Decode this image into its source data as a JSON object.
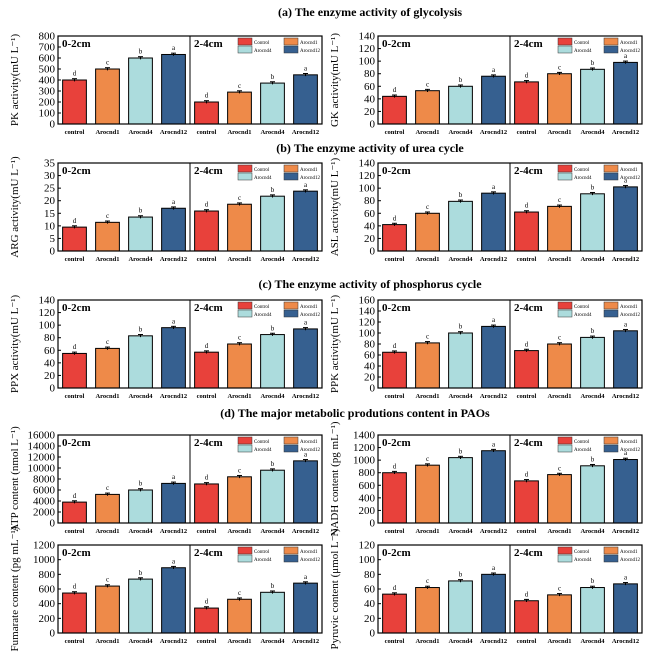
{
  "section_titles": [
    "(a) The enzyme activity of glycolysis",
    "(b) The enzyme activity of urea cycle",
    "(c) The enzyme activity of phosphorus cycle",
    "(d) The major metabolic produtions content in PAOs"
  ],
  "colors": [
    "#e8413b",
    "#ee8a49",
    "#acdcdd",
    "#366090"
  ],
  "chart_data": [
    {
      "type": "bar",
      "title": "PK",
      "ylabel": "PK activity(mU L⁻¹)",
      "ylim": [
        0,
        800
      ],
      "ystep": 100,
      "groups": [
        "0-2cm",
        "2-4cm"
      ],
      "categories": [
        "control",
        "Arocnd1",
        "Arocnd4",
        "Arocnd12"
      ],
      "legend": [
        "Control",
        "Arocnd1",
        "Arocnd4",
        "Arocnd12"
      ],
      "legend_position": "top-right",
      "series": [
        {
          "name": "0-2cm",
          "values": [
            400,
            500,
            600,
            632
          ]
        },
        {
          "name": "2-4cm",
          "values": [
            200,
            290,
            372,
            447
          ]
        }
      ],
      "letters": [
        "d",
        "c",
        "b",
        "a"
      ]
    },
    {
      "type": "bar",
      "title": "GK",
      "ylabel": "GK activity(mU L⁻¹)",
      "ylim": [
        0,
        140
      ],
      "ystep": 20,
      "groups": [
        "0-2cm",
        "2-4cm"
      ],
      "categories": [
        "control",
        "Arocnd1",
        "Arocnd4",
        "Arocnd12"
      ],
      "legend": [
        "Control",
        "Arocnd1",
        "Arocnd4",
        "Arocnd12"
      ],
      "legend_position": "top-right",
      "series": [
        {
          "name": "0-2cm",
          "values": [
            44,
            53,
            60,
            76
          ]
        },
        {
          "name": "2-4cm",
          "values": [
            67,
            80,
            87,
            98
          ]
        }
      ],
      "letters": [
        "d",
        "c",
        "b",
        "a"
      ]
    },
    {
      "type": "bar",
      "title": "ARG",
      "ylabel": "ARG activity(mU L⁻¹)",
      "ylim": [
        0,
        35
      ],
      "ystep": 5,
      "groups": [
        "0-2cm",
        "2-4cm"
      ],
      "categories": [
        "control",
        "Arocnd1",
        "Arocnd4",
        "Arocnd12"
      ],
      "legend": [
        "Control",
        "Arocnd1",
        "Arocnd4",
        "Arocnd12"
      ],
      "legend_position": "top-right",
      "series": [
        {
          "name": "0-2cm",
          "values": [
            9.5,
            11.4,
            13.5,
            17
          ]
        },
        {
          "name": "2-4cm",
          "values": [
            15.9,
            18.6,
            21.8,
            23.8
          ]
        }
      ],
      "letters": [
        "d",
        "c",
        "b",
        "a"
      ]
    },
    {
      "type": "bar",
      "title": "ASL",
      "ylabel": "ASL activity(mU L⁻¹)",
      "ylim": [
        0,
        140
      ],
      "ystep": 20,
      "groups": [
        "0-2cm",
        "2-4cm"
      ],
      "categories": [
        "control",
        "Arocnd1",
        "Arocnd4",
        "Arocnd12"
      ],
      "legend": [
        "Control",
        "Arocnd1",
        "Arocnd4",
        "Arocnd12"
      ],
      "legend_position": "top-right",
      "series": [
        {
          "name": "0-2cm",
          "values": [
            42,
            60,
            79,
            92
          ]
        },
        {
          "name": "2-4cm",
          "values": [
            62,
            71,
            91,
            102
          ]
        }
      ],
      "letters": [
        "d",
        "c",
        "b",
        "a"
      ]
    },
    {
      "type": "bar",
      "title": "PPX",
      "ylabel": "PPX activity(mU L⁻¹)",
      "ylim": [
        0,
        140
      ],
      "ystep": 20,
      "groups": [
        "0-2cm",
        "2-4cm"
      ],
      "categories": [
        "control",
        "Arocnd1",
        "Arocnd4",
        "Arocnd12"
      ],
      "legend": [
        "Control",
        "Arocnd1",
        "Arocnd4",
        "Arocnd12"
      ],
      "legend_position": "top-right",
      "series": [
        {
          "name": "0-2cm",
          "values": [
            55,
            63,
            83,
            96
          ]
        },
        {
          "name": "2-4cm",
          "values": [
            57,
            70,
            85,
            94
          ]
        }
      ],
      "letters": [
        "d",
        "c",
        "b",
        "a"
      ]
    },
    {
      "type": "bar",
      "title": "PPK",
      "ylabel": "PPK activity(mU L⁻¹)",
      "ylim": [
        0,
        160
      ],
      "ystep": 20,
      "groups": [
        "0-2cm",
        "2-4cm"
      ],
      "categories": [
        "control",
        "Arocnd1",
        "Arocnd4",
        "Arocnd12"
      ],
      "legend": [
        "Control",
        "Arocnd1",
        "Arocnd4",
        "Arocnd12"
      ],
      "legend_position": "top-right",
      "series": [
        {
          "name": "0-2cm",
          "values": [
            65,
            82,
            100,
            112
          ]
        },
        {
          "name": "2-4cm",
          "values": [
            68,
            80,
            92,
            104
          ]
        }
      ],
      "letters": [
        "d",
        "c",
        "b",
        "a"
      ]
    },
    {
      "type": "bar",
      "title": "ATP",
      "ylabel": "ATP content (nmol L⁻¹)",
      "ylim": [
        0,
        16000
      ],
      "ystep": 2000,
      "groups": [
        "0-2cm",
        "2-4cm"
      ],
      "categories": [
        "control",
        "Arocnd1",
        "Arocnd4",
        "Arocnd12"
      ],
      "legend": [
        "Control",
        "Arocnd1",
        "Arocnd4",
        "Arocnd12"
      ],
      "legend_position": "top-right",
      "series": [
        {
          "name": "0-2cm",
          "values": [
            3800,
            5200,
            6000,
            7200
          ]
        },
        {
          "name": "2-4cm",
          "values": [
            7100,
            8400,
            9600,
            11300
          ]
        }
      ],
      "letters": [
        "d",
        "c",
        "b",
        "a"
      ]
    },
    {
      "type": "bar",
      "title": "NADH",
      "ylabel": "NADH content (pg mL⁻¹)",
      "ylim": [
        0,
        1400
      ],
      "ystep": 200,
      "groups": [
        "0-2cm",
        "2-4cm"
      ],
      "categories": [
        "control",
        "Arocnd1",
        "Arocnd4",
        "Arocnd12"
      ],
      "legend": [
        "Control",
        "Arocnd1",
        "Arocnd4",
        "Arocnd12"
      ],
      "legend_position": "top-right",
      "series": [
        {
          "name": "0-2cm",
          "values": [
            800,
            920,
            1040,
            1150
          ]
        },
        {
          "name": "2-4cm",
          "values": [
            670,
            770,
            910,
            1010
          ]
        }
      ],
      "letters": [
        "d",
        "c",
        "b",
        "a"
      ]
    },
    {
      "type": "bar",
      "title": "Fumarate",
      "ylabel": "Fumarate content (pg mL⁻¹)",
      "ylim": [
        0,
        1200
      ],
      "ystep": 200,
      "groups": [
        "0-2cm",
        "2-4cm"
      ],
      "categories": [
        "control",
        "Arocnd1",
        "Arocnd4",
        "Arocnd12"
      ],
      "legend": [
        "Control",
        "Arocnd1",
        "Arocnd4",
        "Arocnd12"
      ],
      "legend_position": "top-right",
      "series": [
        {
          "name": "0-2cm",
          "values": [
            545,
            640,
            735,
            890
          ]
        },
        {
          "name": "2-4cm",
          "values": [
            340,
            460,
            555,
            680
          ]
        }
      ],
      "letters": [
        "d",
        "c",
        "b",
        "a"
      ]
    },
    {
      "type": "bar",
      "title": "Pyruvic",
      "ylabel": "Pyruvic content (μmol L⁻¹)",
      "ylim": [
        0,
        120
      ],
      "ystep": 20,
      "groups": [
        "0-2cm",
        "2-4cm"
      ],
      "categories": [
        "control",
        "Arocnd1",
        "Arocnd4",
        "Arocnd12"
      ],
      "legend": [
        "Control",
        "Arocnd1",
        "Arocnd4",
        "Arocnd12"
      ],
      "legend_position": "top-right",
      "series": [
        {
          "name": "0-2cm",
          "values": [
            53,
            62,
            71,
            80
          ]
        },
        {
          "name": "2-4cm",
          "values": [
            44,
            52,
            62,
            67
          ]
        }
      ],
      "letters": [
        "d",
        "c",
        "b",
        "a"
      ]
    }
  ]
}
